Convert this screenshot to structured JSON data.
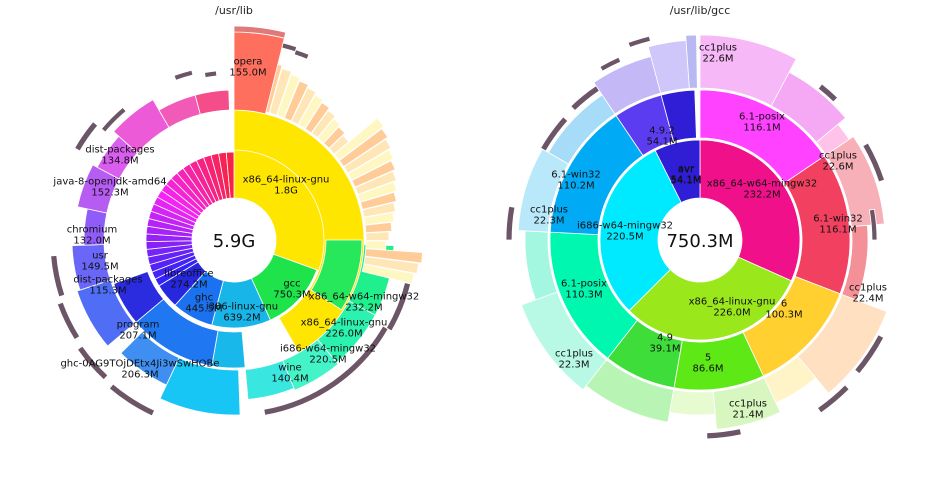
{
  "chart_data": [
    {
      "type": "sunburst",
      "title": "/usr/lib",
      "center_label": "5.9G",
      "rings": [
        {
          "ring": 1,
          "segments": [
            {
              "name": "x86_64-linux-gnu",
              "value": "1.8G",
              "size": 1.8,
              "color": "#ffe600"
            },
            {
              "name": "gcc",
              "value": "750.3M",
              "size": 0.75,
              "color": "#1ee34a"
            },
            {
              "name": "i386-linux-gnu",
              "value": "639.2M",
              "size": 0.64,
              "color": "#17b5e8"
            },
            {
              "name": "ghc",
              "value": "445.5M",
              "size": 0.45,
              "color": "#1a72f0"
            },
            {
              "name": "libreoffice",
              "value": "274.2M",
              "size": 0.27,
              "color": "#2727e0"
            },
            {
              "name": "",
              "size": 1.99,
              "color": "#9c2bff"
            }
          ]
        }
      ],
      "outer_labels": [
        {
          "name": "opera",
          "value": "155.0M"
        },
        {
          "name": "dist-packages",
          "value": "134.8M"
        },
        {
          "name": "java-8-openjdk-amd64",
          "value": "152.3M"
        },
        {
          "name": "chromium",
          "value": "132.0M"
        },
        {
          "name": "usr",
          "value": "149.5M"
        },
        {
          "name": "dist-packages",
          "value": "115.3M"
        },
        {
          "name": "program",
          "value": "207.1M"
        },
        {
          "name": "ghc-0AG9TOjDEtx4Ji3wSwHOBe",
          "value": "206.3M"
        },
        {
          "name": "x86_64-w64-mingw32",
          "value": "232.2M"
        },
        {
          "name": "x86_64-linux-gnu",
          "value": "226.0M"
        },
        {
          "name": "i686-w64-mingw32",
          "value": "220.5M"
        },
        {
          "name": "wine",
          "value": "140.4M"
        }
      ]
    },
    {
      "type": "sunburst",
      "title": "/usr/lib/gcc",
      "center_label": "750.3M",
      "rings": [
        {
          "ring": 1,
          "segments": [
            {
              "name": "x86_64-w64-mingw32",
              "value": "232.2M",
              "size": 232.2,
              "color": "#f0108a"
            },
            {
              "name": "x86_64-linux-gnu",
              "value": "226.0M",
              "size": 226.0,
              "color": "#9ae81c"
            },
            {
              "name": "i686-w64-mingw32",
              "value": "220.5M",
              "size": 220.5,
              "color": "#00eaff"
            },
            {
              "name": "avr",
              "value": "54.1M",
              "size": 54.1,
              "color": "#2f1ed6"
            }
          ]
        }
      ],
      "outer_labels": [
        {
          "name": "cc1plus",
          "value": "22.6M"
        },
        {
          "name": "6.1-posix",
          "value": "116.1M"
        },
        {
          "name": "cc1plus",
          "value": "22.6M"
        },
        {
          "name": "6.1-win32",
          "value": "116.1M"
        },
        {
          "name": "cc1plus",
          "value": "22.4M"
        },
        {
          "name": "6",
          "value": "100.3M"
        },
        {
          "name": "cc1plus",
          "value": "21.4M"
        },
        {
          "name": "5",
          "value": "86.6M"
        },
        {
          "name": "4.9",
          "value": "39.1M"
        },
        {
          "name": "cc1plus",
          "value": "22.3M"
        },
        {
          "name": "6.1-posix",
          "value": "110.3M"
        },
        {
          "name": "cc1plus",
          "value": "22.3M"
        },
        {
          "name": "6.1-win32",
          "value": "110.2M"
        },
        {
          "name": "4.9.2",
          "value": "54.1M"
        },
        {
          "name": "avr",
          "value": "54.1M"
        }
      ]
    }
  ]
}
